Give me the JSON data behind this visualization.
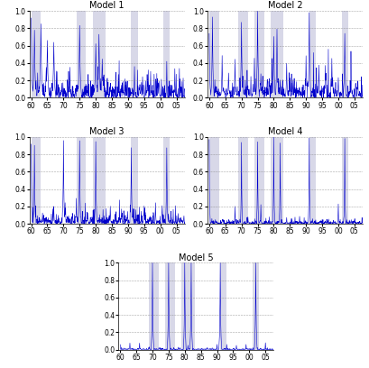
{
  "title_fontsize": 7,
  "tick_fontsize": 5.5,
  "line_color": "#0000CC",
  "shade_color": "#AAAACC",
  "shade_alpha": 0.45,
  "ylim": [
    0.0,
    1.0
  ],
  "yticks": [
    0.0,
    0.2,
    0.4,
    0.6,
    0.8,
    1.0
  ],
  "xtick_labels": [
    "60",
    "65",
    "70",
    "75",
    "80",
    "85",
    "90",
    "95",
    "00",
    "05"
  ],
  "models": [
    "Model 1",
    "Model 2",
    "Model 3",
    "Model 4",
    "Model 5"
  ],
  "shade_all": [
    [
      [
        1960,
        1963
      ],
      [
        1974,
        1977
      ],
      [
        1979,
        1983
      ],
      [
        1991,
        1993
      ],
      [
        2001,
        2003
      ]
    ],
    [
      [
        1960,
        1963
      ],
      [
        1969,
        1972
      ],
      [
        1974,
        1977
      ],
      [
        1979,
        1983
      ],
      [
        1991,
        1993
      ],
      [
        2001,
        2003
      ]
    ],
    [
      [
        1960,
        1963
      ],
      [
        1974,
        1977
      ],
      [
        1979,
        1983
      ],
      [
        1991,
        1993
      ],
      [
        2001,
        2003
      ]
    ],
    [
      [
        1960,
        1963
      ],
      [
        1969,
        1972
      ],
      [
        1974,
        1977
      ],
      [
        1979,
        1983
      ],
      [
        1991,
        1993
      ],
      [
        2001,
        2003
      ]
    ],
    [
      [
        1969,
        1972
      ],
      [
        1974,
        1977
      ],
      [
        1979,
        1983
      ],
      [
        1991,
        1993
      ],
      [
        2001,
        2003
      ]
    ]
  ]
}
